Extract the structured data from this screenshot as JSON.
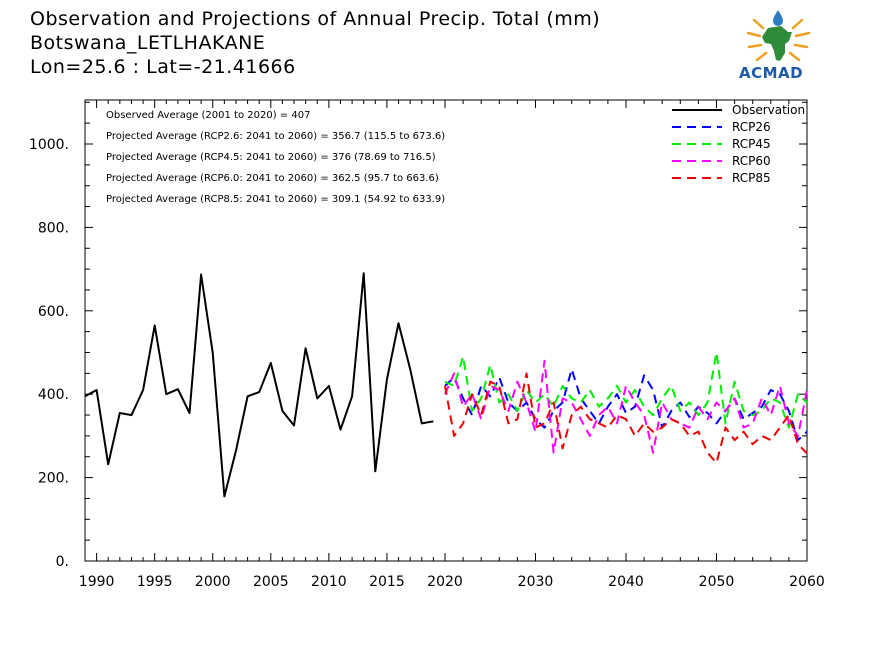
{
  "title_lines": [
    "Observation and Projections of Annual Precip. Total (mm)",
    "Botswana_LETLHAKANE",
    "Lon=25.6 : Lat=-21.41666"
  ],
  "logo": {
    "text": "ACMAD"
  },
  "colors": {
    "observation": "#000000",
    "rcp26": "#0000ff",
    "rcp45": "#00ee00",
    "rcp60": "#ff00ff",
    "rcp85": "#ee0000"
  },
  "chart_data": {
    "type": "line",
    "title": "Observation and Projections of Annual Precip. Total (mm)",
    "xlabel": "",
    "ylabel": "",
    "xlim": [
      1989,
      2060
    ],
    "ylim": [
      0,
      1100
    ],
    "x_ticks": [
      1990,
      1995,
      2000,
      2005,
      2010,
      2015,
      2020,
      2030,
      2040,
      2050,
      2060
    ],
    "y_ticks": [
      0,
      200,
      400,
      600,
      800,
      1000
    ],
    "y_tick_labels": [
      "0.",
      "200.",
      "400.",
      "600.",
      "800.",
      "1000."
    ],
    "legend_position": "top-right",
    "annotations": [
      "Observed Average (2001 to 2020) = 407",
      "Projected Average (RCP2.6: 2041 to 2060) = 356.7 (115.5 to 673.6)",
      "Projected Average (RCP4.5: 2041 to 2060) = 376 (78.69 to 716.5)",
      "Projected Average (RCP6.0: 2041 to 2060) = 362.5 (95.7 to 663.6)",
      "Projected Average (RCP8.5: 2041 to 2060) = 309.1 (54.92 to 633.9)"
    ],
    "series": [
      {
        "name": "Observation",
        "style": "solid",
        "x": [
          1989,
          1990,
          1991,
          1992,
          1993,
          1994,
          1995,
          1996,
          1997,
          1998,
          1999,
          2000,
          2001,
          2002,
          2003,
          2004,
          2005,
          2006,
          2007,
          2008,
          2009,
          2010,
          2011,
          2012,
          2013,
          2014,
          2015,
          2016,
          2017,
          2018,
          2019
        ],
        "values": [
          395,
          410,
          232,
          355,
          350,
          410,
          565,
          400,
          412,
          355,
          687,
          500,
          155,
          265,
          395,
          405,
          475,
          360,
          325,
          510,
          390,
          420,
          315,
          395,
          690,
          215,
          435,
          570,
          460,
          330,
          335
        ]
      },
      {
        "name": "RCP26",
        "style": "dashed",
        "x": [
          2020,
          2021,
          2022,
          2023,
          2024,
          2025,
          2026,
          2027,
          2028,
          2029,
          2030,
          2031,
          2032,
          2033,
          2034,
          2035,
          2036,
          2037,
          2038,
          2039,
          2040,
          2041,
          2042,
          2043,
          2044,
          2045,
          2046,
          2047,
          2048,
          2049,
          2050,
          2051,
          2052,
          2053,
          2054,
          2055,
          2056,
          2057,
          2058,
          2059,
          2060
        ],
        "values": [
          420,
          440,
          390,
          350,
          420,
          395,
          440,
          380,
          360,
          380,
          340,
          320,
          360,
          380,
          460,
          390,
          360,
          330,
          370,
          400,
          355,
          370,
          445,
          410,
          320,
          360,
          380,
          345,
          370,
          355,
          330,
          360,
          390,
          340,
          355,
          370,
          410,
          400,
          360,
          290,
          310
        ]
      },
      {
        "name": "RCP45",
        "style": "dashed",
        "x": [
          2020,
          2021,
          2022,
          2023,
          2024,
          2025,
          2026,
          2027,
          2028,
          2029,
          2030,
          2031,
          2032,
          2033,
          2034,
          2035,
          2036,
          2037,
          2038,
          2039,
          2040,
          2041,
          2042,
          2043,
          2044,
          2045,
          2046,
          2047,
          2048,
          2049,
          2050,
          2051,
          2052,
          2053,
          2054,
          2055,
          2056,
          2057,
          2058,
          2059,
          2060
        ],
        "values": [
          430,
          420,
          490,
          360,
          390,
          470,
          380,
          400,
          360,
          410,
          380,
          400,
          370,
          420,
          390,
          380,
          410,
          370,
          390,
          420,
          380,
          410,
          370,
          350,
          390,
          420,
          360,
          380,
          350,
          380,
          500,
          330,
          430,
          360,
          350,
          360,
          390,
          380,
          320,
          400,
          380
        ]
      },
      {
        "name": "RCP60",
        "style": "dashed",
        "x": [
          2020,
          2021,
          2022,
          2023,
          2024,
          2025,
          2026,
          2027,
          2028,
          2029,
          2030,
          2031,
          2032,
          2033,
          2034,
          2035,
          2036,
          2037,
          2038,
          2039,
          2040,
          2041,
          2042,
          2043,
          2044,
          2045,
          2046,
          2047,
          2048,
          2049,
          2050,
          2051,
          2052,
          2053,
          2054,
          2055,
          2056,
          2057,
          2058,
          2059,
          2060
        ],
        "values": [
          400,
          450,
          370,
          400,
          340,
          420,
          410,
          360,
          430,
          380,
          310,
          480,
          260,
          390,
          380,
          340,
          300,
          350,
          370,
          330,
          420,
          380,
          350,
          260,
          380,
          340,
          330,
          320,
          370,
          340,
          380,
          360,
          390,
          320,
          330,
          390,
          350,
          420,
          330,
          300,
          410
        ]
      },
      {
        "name": "RCP85",
        "style": "dashed",
        "x": [
          2020,
          2021,
          2022,
          2023,
          2024,
          2025,
          2026,
          2027,
          2028,
          2029,
          2030,
          2031,
          2032,
          2033,
          2034,
          2035,
          2036,
          2037,
          2038,
          2039,
          2040,
          2041,
          2042,
          2043,
          2044,
          2045,
          2046,
          2047,
          2048,
          2049,
          2050,
          2051,
          2052,
          2053,
          2054,
          2055,
          2056,
          2057,
          2058,
          2059,
          2060
        ],
        "values": [
          420,
          300,
          330,
          400,
          350,
          430,
          420,
          330,
          340,
          450,
          320,
          330,
          380,
          270,
          350,
          370,
          340,
          330,
          320,
          350,
          340,
          300,
          330,
          310,
          320,
          340,
          330,
          300,
          310,
          260,
          235,
          320,
          290,
          310,
          280,
          300,
          290,
          320,
          350,
          280,
          258
        ]
      }
    ]
  }
}
